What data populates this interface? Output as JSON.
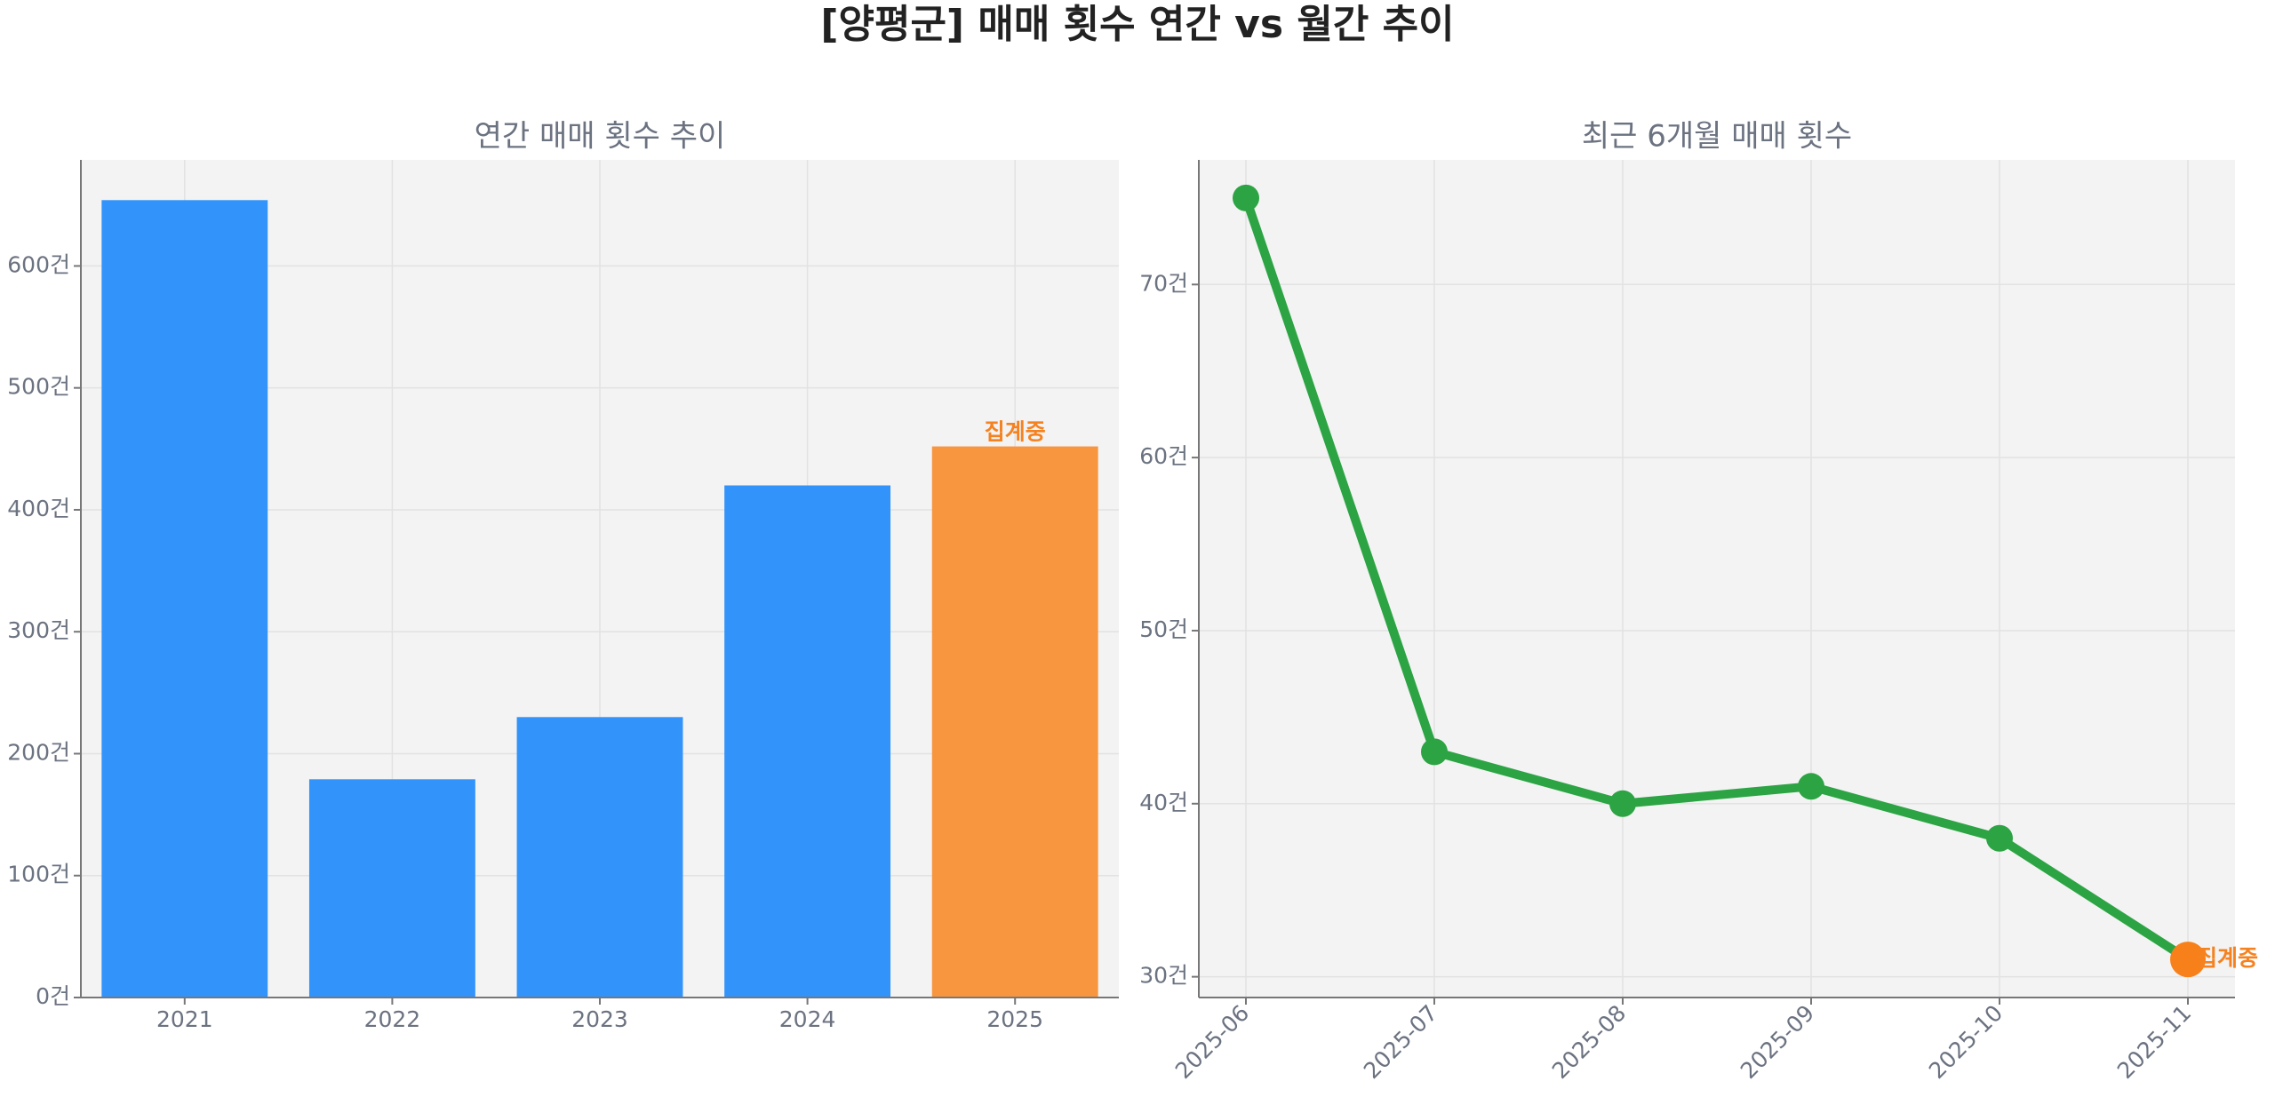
{
  "title": "[양평군] 매매 횟수 연간 vs 월간 추이",
  "chart_data": [
    {
      "type": "bar",
      "title": "연간 매매 횟수 추이",
      "categories": [
        "2021",
        "2022",
        "2023",
        "2024",
        "2025"
      ],
      "values": [
        654,
        179,
        230,
        420,
        452
      ],
      "colors": [
        "#3293fb",
        "#3293fb",
        "#3293fb",
        "#3293fb",
        "#f89640"
      ],
      "annotation": "집계중",
      "annotation_color": "#f58220",
      "ylim": [
        0,
        687
      ],
      "yticks": [
        {
          "value": 0,
          "label": "0건"
        },
        {
          "value": 100,
          "label": "100건"
        },
        {
          "value": 200,
          "label": "200건"
        },
        {
          "value": 300,
          "label": "300건"
        },
        {
          "value": 400,
          "label": "400건"
        },
        {
          "value": 500,
          "label": "500건"
        },
        {
          "value": 600,
          "label": "600건"
        }
      ],
      "grid": true
    },
    {
      "type": "line",
      "title": "최근 6개월 매매 횟수",
      "x": [
        "2025-06",
        "2025-07",
        "2025-08",
        "2025-09",
        "2025-10",
        "2025-11"
      ],
      "values": [
        75,
        43,
        40,
        41,
        38,
        31
      ],
      "color": "#2ca444",
      "last_color": "#f7801a",
      "annotation": "집계중",
      "annotation_color": "#f58220",
      "ylim": [
        28.8,
        77.2
      ],
      "yticks": [
        {
          "value": 30,
          "label": "30건"
        },
        {
          "value": 40,
          "label": "40건"
        },
        {
          "value": 50,
          "label": "50건"
        },
        {
          "value": 60,
          "label": "60건"
        },
        {
          "value": 70,
          "label": "70건"
        }
      ],
      "grid": true
    }
  ]
}
